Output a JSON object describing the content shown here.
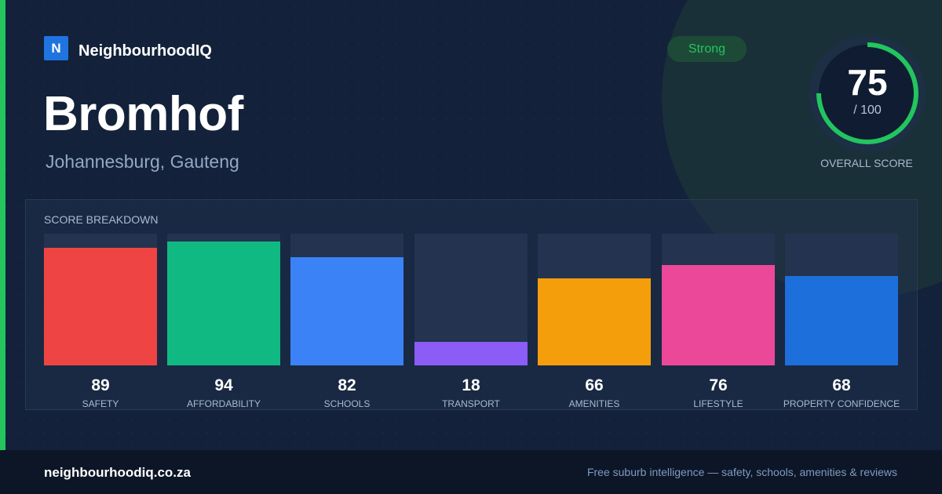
{
  "brand": {
    "mark": "N",
    "name": "NeighbourhoodIQ"
  },
  "suburb": {
    "name": "Bromhof",
    "location": "Johannesburg, Gauteng"
  },
  "rating_badge": "Strong",
  "overall": {
    "score": "75",
    "max_label": "/ 100",
    "caption": "OVERALL SCORE",
    "fraction": 0.75
  },
  "breakdown": {
    "title": "SCORE BREAKDOWN",
    "metrics": [
      {
        "label": "SAFETY",
        "value": "89",
        "color": "#ef4444"
      },
      {
        "label": "AFFORDABILITY",
        "value": "94",
        "color": "#10b981"
      },
      {
        "label": "SCHOOLS",
        "value": "82",
        "color": "#3b82f6"
      },
      {
        "label": "TRANSPORT",
        "value": "18",
        "color": "#8b5cf6"
      },
      {
        "label": "AMENITIES",
        "value": "66",
        "color": "#f59e0b"
      },
      {
        "label": "LIFESTYLE",
        "value": "76",
        "color": "#ec4899"
      },
      {
        "label": "PROPERTY CONFIDENCE",
        "value": "68",
        "color": "#1d6fdc"
      }
    ]
  },
  "footer": {
    "domain": "neighbourhoodiq.co.za",
    "tagline": "Free suburb intelligence — safety, schools, amenities & reviews"
  },
  "colors": {
    "accent": "#22c55e",
    "background": "#13213a",
    "brand": "#1f74e0"
  }
}
